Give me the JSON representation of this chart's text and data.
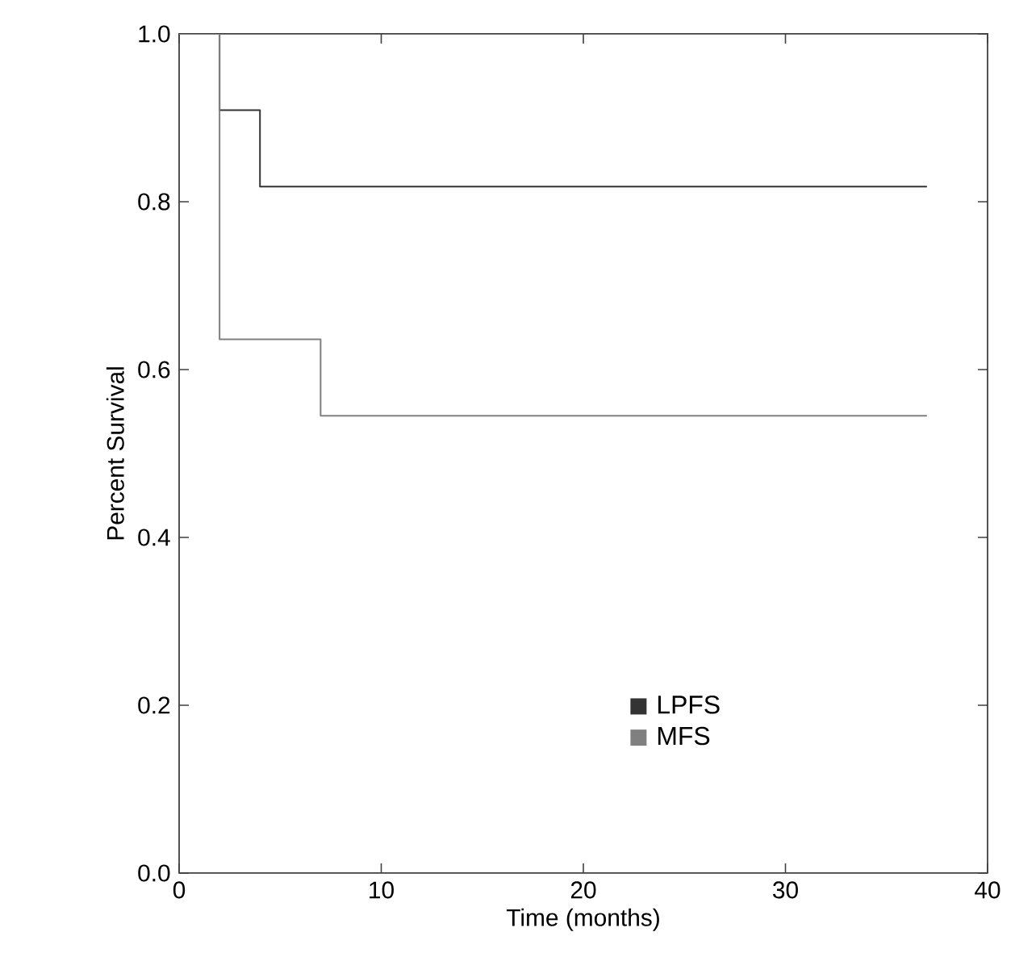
{
  "chart_data": {
    "type": "step",
    "xlabel": "Time (months)",
    "ylabel": "Percent Survival",
    "xlim": [
      0,
      40
    ],
    "ylim": [
      0,
      1
    ],
    "xticks": [
      0,
      10,
      20,
      30,
      40
    ],
    "yticks": [
      {
        "value": 0,
        "label": "0.0"
      },
      {
        "value": 0.2,
        "label": "0.2"
      },
      {
        "value": 0.4,
        "label": "0.4"
      },
      {
        "value": 0.6,
        "label": "0.6"
      },
      {
        "value": 0.8,
        "label": "0.8"
      },
      {
        "value": 1,
        "label": "1.0"
      }
    ],
    "grid": false,
    "legend": "bottom",
    "marker": "none",
    "line_style": "solid",
    "series": [
      {
        "name": "LPFS",
        "color": "#333333",
        "x": [
          0,
          2,
          4,
          37
        ],
        "values": [
          1,
          0.909,
          0.818,
          0.818
        ]
      },
      {
        "name": "MFS",
        "color": "#808080",
        "x": [
          0,
          2,
          7,
          37
        ],
        "values": [
          1,
          0.636,
          0.545,
          0.545
        ]
      }
    ]
  }
}
